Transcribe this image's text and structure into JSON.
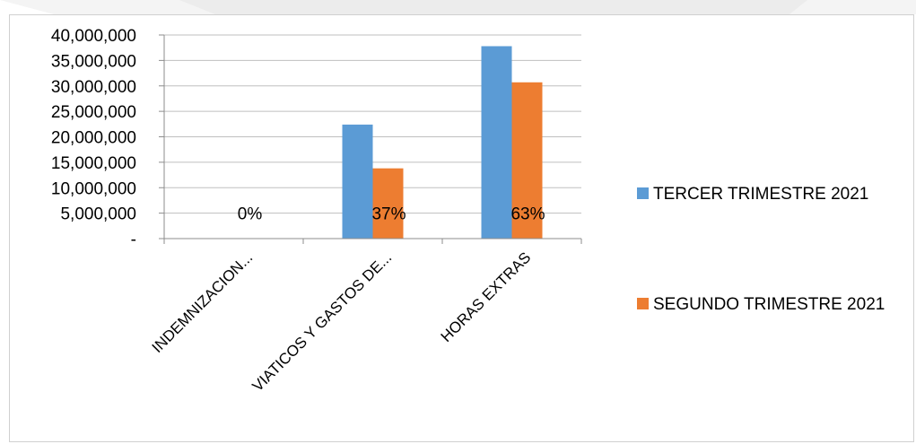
{
  "chart_data": {
    "type": "bar",
    "categories": [
      "INDEMNIZACION...",
      "VIATICOS Y GASTOS DE...",
      "HORAS EXTRAS"
    ],
    "series": [
      {
        "name": "TERCER TRIMESTRE 2021",
        "color": "#5B9BD5",
        "values": [
          0,
          22400000,
          37800000
        ]
      },
      {
        "name": "SEGUNDO TRIMESTRE 2021",
        "color": "#ED7D31",
        "values": [
          0,
          13800000,
          30700000
        ]
      }
    ],
    "data_labels": [
      "0%",
      "37%",
      "63%"
    ],
    "y_tick_labels": [
      "-",
      "5,000,000",
      "10,000,000",
      "15,000,000",
      "20,000,000",
      "25,000,000",
      "30,000,000",
      "35,000,000",
      "40,000,000"
    ],
    "ylim": [
      0,
      40000000
    ],
    "y_step": 5000000,
    "grid": true,
    "legend_position": "right",
    "title": "",
    "xlabel": "",
    "ylabel": ""
  }
}
